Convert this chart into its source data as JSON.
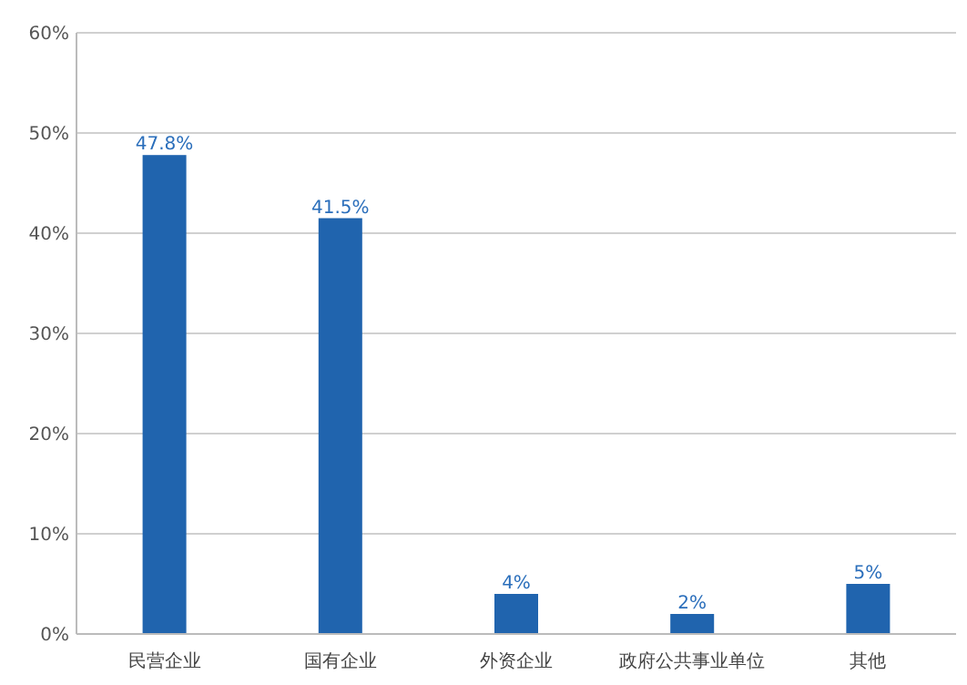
{
  "chart_data": {
    "type": "bar",
    "categories": [
      "民营企业",
      "国有企业",
      "外资企业",
      "政府公共事业单位",
      "其他"
    ],
    "values": [
      47.8,
      41.5,
      4,
      2,
      5
    ],
    "color": "#2064ae",
    "value_labels": [
      "47.8%",
      "41.5%",
      "4%",
      "2%",
      "5%"
    ],
    "ylim": [
      0,
      60
    ],
    "yticks": [
      {
        "value": 0,
        "label": "0%"
      },
      {
        "value": 10,
        "label": "10%"
      },
      {
        "value": 20,
        "label": "20%"
      },
      {
        "value": 30,
        "label": "30%"
      },
      {
        "value": 40,
        "label": "40%"
      },
      {
        "value": 50,
        "label": "50%"
      },
      {
        "value": 60,
        "label": "60%"
      }
    ],
    "grid": "y"
  }
}
